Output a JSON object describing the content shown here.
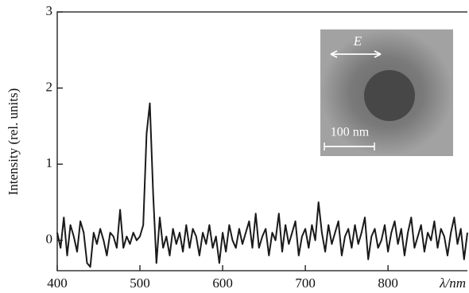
{
  "chart_data": {
    "type": "line",
    "x_label": "λ/nm",
    "y_label": "Intensity (rel. units)",
    "annotations": [
      "E",
      "100 nm"
    ],
    "x": [
      400,
      404,
      408,
      412,
      416,
      420,
      424,
      428,
      432,
      436,
      440,
      444,
      448,
      452,
      456,
      460,
      464,
      468,
      472,
      476,
      480,
      484,
      488,
      492,
      496,
      500,
      504,
      508,
      512,
      516,
      520,
      524,
      528,
      532,
      536,
      540,
      544,
      548,
      552,
      556,
      560,
      564,
      568,
      572,
      576,
      580,
      584,
      588,
      592,
      596,
      600,
      604,
      608,
      612,
      616,
      620,
      624,
      628,
      632,
      636,
      640,
      644,
      648,
      652,
      656,
      660,
      664,
      668,
      672,
      676,
      680,
      684,
      688,
      692,
      696,
      700,
      704,
      708,
      712,
      716,
      720,
      724,
      728,
      732,
      736,
      740,
      744,
      748,
      752,
      756,
      760,
      764,
      768,
      772,
      776,
      780,
      784,
      788,
      792,
      796,
      800,
      804,
      808,
      812,
      816,
      820,
      824,
      828,
      832,
      836,
      840,
      844,
      848,
      852,
      856,
      860,
      864,
      868,
      872,
      876,
      880,
      884,
      888,
      892,
      896
    ],
    "series": [
      {
        "color": "#1a1a1a",
        "values": [
          0.1,
          -0.1,
          0.3,
          -0.2,
          0.2,
          0.05,
          -0.15,
          0.25,
          0.1,
          -0.3,
          -0.35,
          0.1,
          -0.05,
          0.15,
          0.0,
          -0.2,
          0.1,
          0.05,
          -0.1,
          0.4,
          -0.1,
          0.05,
          -0.05,
          0.1,
          0.0,
          0.05,
          0.2,
          1.4,
          1.8,
          0.6,
          -0.3,
          0.3,
          -0.1,
          0.05,
          -0.2,
          0.15,
          -0.05,
          0.1,
          -0.15,
          0.2,
          -0.1,
          0.15,
          0.05,
          -0.2,
          0.1,
          -0.05,
          0.2,
          -0.1,
          0.05,
          -0.3,
          0.1,
          -0.15,
          0.2,
          0.0,
          -0.1,
          0.15,
          -0.05,
          0.1,
          0.25,
          -0.1,
          0.35,
          -0.1,
          0.05,
          0.15,
          -0.2,
          0.1,
          0.0,
          0.35,
          -0.15,
          0.2,
          -0.05,
          0.1,
          0.25,
          -0.2,
          0.05,
          0.15,
          -0.1,
          0.2,
          0.0,
          0.5,
          0.1,
          -0.15,
          0.2,
          -0.05,
          0.1,
          0.25,
          -0.2,
          0.05,
          0.15,
          -0.1,
          0.2,
          -0.05,
          0.1,
          0.3,
          -0.25,
          0.05,
          0.15,
          -0.1,
          0.0,
          0.2,
          -0.15,
          0.1,
          0.25,
          -0.05,
          0.15,
          -0.2,
          0.1,
          0.3,
          -0.1,
          0.05,
          0.2,
          -0.15,
          0.1,
          0.0,
          0.25,
          -0.1,
          0.15,
          0.05,
          -0.2,
          0.1,
          0.3,
          -0.05,
          0.15,
          -0.25,
          0.1
        ]
      }
    ],
    "xlim": [
      400,
      896
    ],
    "xticks": [
      400,
      500,
      600,
      700,
      800
    ],
    "ylim": [
      -0.4,
      3
    ],
    "yticks": [
      0,
      1,
      2,
      3
    ]
  }
}
